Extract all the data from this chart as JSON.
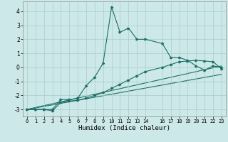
{
  "xlabel": "Humidex (Indice chaleur)",
  "ylabel": "",
  "xlim": [
    -0.5,
    23.5
  ],
  "ylim": [
    -3.5,
    4.7
  ],
  "yticks": [
    -3,
    -2,
    -1,
    0,
    1,
    2,
    3,
    4
  ],
  "xticks": [
    0,
    1,
    2,
    3,
    4,
    5,
    6,
    7,
    8,
    9,
    10,
    11,
    12,
    13,
    14,
    16,
    17,
    18,
    19,
    20,
    21,
    22,
    23
  ],
  "bg_color": "#cce8e8",
  "line_color": "#1a6e64",
  "grid_color": "#aacccc",
  "line1_x": [
    0,
    1,
    2,
    3,
    4,
    5,
    6,
    7,
    8,
    9,
    10,
    11,
    12,
    13,
    14,
    16,
    17,
    18,
    19,
    20,
    21,
    22,
    23
  ],
  "line1_y": [
    -3.0,
    -3.0,
    -3.0,
    -3.0,
    -2.3,
    -2.3,
    -2.2,
    -1.3,
    -0.7,
    0.3,
    4.3,
    2.5,
    2.8,
    2.0,
    2.0,
    1.7,
    0.7,
    0.7,
    0.5,
    0.1,
    -0.2,
    0.1,
    0.0
  ],
  "line2_x": [
    0,
    1,
    2,
    3,
    4,
    5,
    6,
    7,
    8,
    9,
    10,
    11,
    12,
    13,
    14,
    16,
    17,
    18,
    19,
    20,
    21,
    22,
    23
  ],
  "line2_y": [
    -3.0,
    -3.0,
    -3.0,
    -3.1,
    -2.5,
    -2.4,
    -2.35,
    -2.2,
    -2.0,
    -1.8,
    -1.5,
    -1.2,
    -0.9,
    -0.6,
    -0.3,
    0.0,
    0.2,
    0.4,
    0.45,
    0.5,
    0.45,
    0.4,
    -0.1
  ],
  "line3_x": [
    0,
    23
  ],
  "line3_y": [
    -3.0,
    0.1
  ],
  "line4_x": [
    0,
    23
  ],
  "line4_y": [
    -3.0,
    -0.5
  ]
}
